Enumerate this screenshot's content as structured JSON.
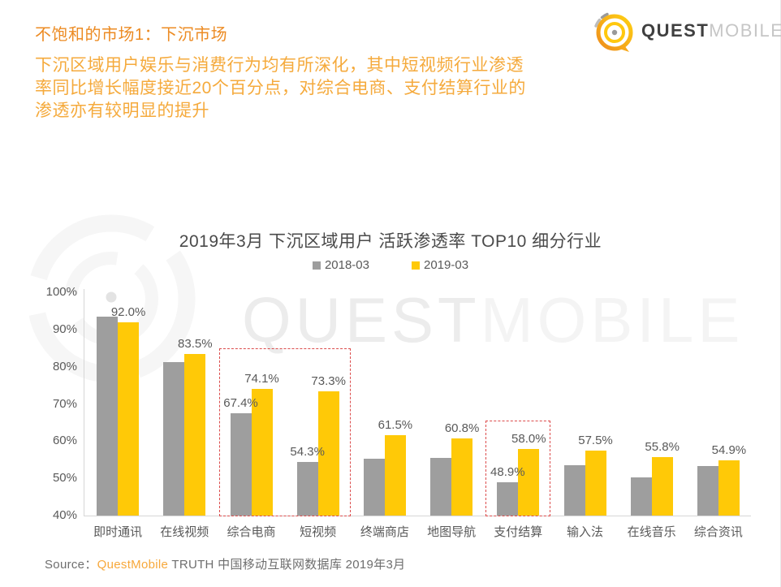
{
  "header": {
    "title": "不饱和的市场1：下沉市场",
    "title_color": "#ec8b23",
    "subtitle_color": "#f5aa3c",
    "subtitle_lines": [
      "下沉区域用户娱乐与消费行为均有所深化，其中短视频行业渗透",
      "率同比增长幅度接近20个百分点，对综合电商、支付结算行业的",
      "渗透亦有较明显的提升"
    ]
  },
  "logo": {
    "quest": "QUEST",
    "mobile": "MOBILE"
  },
  "watermark": {
    "part1": "QUEST",
    "part2": "MOBILE"
  },
  "chart_data": {
    "type": "bar",
    "title": "2019年3月 下沉区域用户 活跃渗透率 TOP10 细分行业",
    "categories": [
      "即时通讯",
      "在线视频",
      "综合电商",
      "短视频",
      "终端商店",
      "地图导航",
      "支付结算",
      "输入法",
      "在线音乐",
      "综合资讯"
    ],
    "series": [
      {
        "name": "2018-03",
        "color": "#9e9e9e",
        "values": [
          93.5,
          81.3,
          67.4,
          54.3,
          55.3,
          55.5,
          48.9,
          53.5,
          50.3,
          53.4
        ],
        "labels": [
          "",
          "",
          "67.4%",
          "54.3%",
          "",
          "",
          "48.9%",
          "",
          "",
          ""
        ]
      },
      {
        "name": "2019-03",
        "color": "#ffc907",
        "values": [
          92.0,
          83.5,
          74.1,
          73.3,
          61.5,
          60.8,
          58.0,
          57.5,
          55.8,
          54.9
        ],
        "labels": [
          "92.0%",
          "83.5%",
          "74.1%",
          "73.3%",
          "61.5%",
          "60.8%",
          "58.0%",
          "57.5%",
          "55.8%",
          "54.9%"
        ]
      }
    ],
    "ylabel": "",
    "xlabel": "",
    "ylim": [
      40,
      100
    ],
    "ytick_step": 10,
    "ytick_suffix": "%",
    "grid": false,
    "legend_position": "top",
    "highlight_boxes": [
      {
        "from": 2,
        "to": 3,
        "top_value": 85.2
      },
      {
        "from": 6,
        "to": 6,
        "top_value": 65.7
      }
    ],
    "highlight_color": "#dc4c4c"
  },
  "source": {
    "prefix": "Source：",
    "brand": "QuestMobile",
    "rest": " TRUTH 中国移动互联网数据库 2019年3月"
  }
}
